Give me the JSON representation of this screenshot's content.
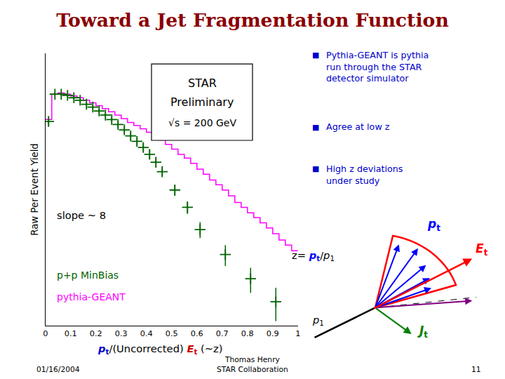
{
  "chart_data": {
    "type": "histogram",
    "title": "Toward a Jet Fragmentation Function",
    "title_color": "#8B0000",
    "ylabel": "Raw Per Event Yield",
    "xlabel": [
      {
        "text": "p",
        "sub": "t",
        "color": "#0000cc"
      },
      {
        "text": "/(Uncorrected) ",
        "color": "#000000"
      },
      {
        "text": "E",
        "sub": "t",
        "color": "#cc0000"
      },
      {
        "text": " (~z)",
        "color": "#000000"
      }
    ],
    "series": [
      {
        "type": "step",
        "color": "#ff00ff",
        "bins": [
          0.0,
          0.025,
          0.05,
          0.075,
          0.1,
          0.125,
          0.15,
          0.175,
          0.2,
          0.225,
          0.25,
          0.275,
          0.3,
          0.325,
          0.35,
          0.375,
          0.4,
          0.425,
          0.45,
          0.475,
          0.5,
          0.525,
          0.55,
          0.575,
          0.6,
          0.625,
          0.65,
          0.675,
          0.7,
          0.725,
          0.75,
          0.775,
          0.8,
          0.825,
          0.85,
          0.875,
          0.9,
          0.925,
          0.95,
          0.975,
          1.0
        ],
        "values": [
          0.55,
          0.9,
          0.92,
          0.9,
          0.87,
          0.84,
          0.8,
          0.76,
          0.72,
          0.68,
          0.64,
          0.6,
          0.56,
          0.52,
          0.49,
          0.46,
          0.43,
          0.4,
          0.37,
          0.34,
          0.31,
          0.28,
          0.26,
          0.235,
          0.21,
          0.19,
          0.17,
          0.155,
          0.14,
          0.125,
          0.11,
          0.1,
          0.09,
          0.082,
          0.074,
          0.067,
          0.06,
          0.053,
          0.048,
          0.043
        ]
      },
      {
        "type": "scatter",
        "color": "#006400",
        "marker": "+",
        "x": [
          0.0125,
          0.0375,
          0.0625,
          0.0875,
          0.1125,
          0.1375,
          0.1625,
          0.1875,
          0.2125,
          0.2375,
          0.2625,
          0.2875,
          0.3125,
          0.3375,
          0.3625,
          0.3875,
          0.4125,
          0.4375,
          0.4625,
          0.5125,
          0.5625,
          0.6125,
          0.7125,
          0.8125,
          0.9125
        ],
        "values": [
          0.53,
          0.9,
          0.9,
          0.88,
          0.84,
          0.8,
          0.74,
          0.7,
          0.65,
          0.6,
          0.55,
          0.5,
          0.45,
          0.4,
          0.36,
          0.32,
          0.28,
          0.24,
          0.2,
          0.14,
          0.1,
          0.065,
          0.04,
          0.025,
          0.016
        ],
        "error_lo": [
          0.04,
          0.03,
          0.03,
          0.03,
          0.03,
          0.03,
          0.03,
          0.03,
          0.03,
          0.03,
          0.03,
          0.03,
          0.03,
          0.03,
          0.03,
          0.025,
          0.025,
          0.02,
          0.02,
          0.015,
          0.012,
          0.01,
          0.008,
          0.006,
          0.005
        ],
        "error_hi": [
          0.04,
          0.03,
          0.03,
          0.03,
          0.03,
          0.03,
          0.03,
          0.03,
          0.03,
          0.03,
          0.03,
          0.03,
          0.03,
          0.03,
          0.03,
          0.025,
          0.025,
          0.02,
          0.02,
          0.015,
          0.012,
          0.01,
          0.008,
          0.006,
          0.005
        ]
      }
    ],
    "xlim": [
      0,
      1.0
    ],
    "xticks": [
      0,
      0.1,
      0.2,
      0.3,
      0.4,
      0.5,
      0.6,
      0.7,
      0.8,
      0.9,
      1
    ],
    "ylim": [
      0.01,
      2.0
    ],
    "yticks": [],
    "log": "y",
    "grid": false,
    "tick_labels": "x",
    "annotations": [
      {
        "text": "slope ~ 8",
        "color": "#000000"
      },
      {
        "text": "p+p MinBias",
        "color": "#006400"
      },
      {
        "text": "pythia-GEANT",
        "color": "#ff00ff"
      }
    ],
    "box": [
      "STAR",
      "Preliminary",
      "√s = 200 GeV"
    ],
    "bullets": {
      "symbol": "■",
      "color": "#0000cc",
      "texts": [
        "Pythia-GEANT is pythia\nrun through the STAR\ndetector simulator",
        "Agree at low z",
        "High z deviations\nunder study"
      ]
    },
    "diagram_labels": [
      {
        "text": "p",
        "sub": "t",
        "color": "#0000ff"
      },
      {
        "text": "E",
        "sub": "t",
        "color": "#ff0000"
      },
      {
        "text": "J",
        "sub": "t",
        "color": "#008000"
      },
      {
        "text": "p",
        "sub": "1",
        "color": "#000000"
      }
    ],
    "diagram_formula": [
      {
        "text": "z= ",
        "color": "#000000"
      },
      {
        "text": "p",
        "sub": "t",
        "color": "#0000ff"
      },
      {
        "text": "/",
        "color": "#000000"
      },
      {
        "text": "p",
        "sub": "1",
        "color": "#000000"
      }
    ],
    "footer": {
      "left": "01/16/2004",
      "center": [
        "Thomas Henry",
        "STAR Collaboration"
      ],
      "right": "11",
      "color": "#000000"
    }
  }
}
